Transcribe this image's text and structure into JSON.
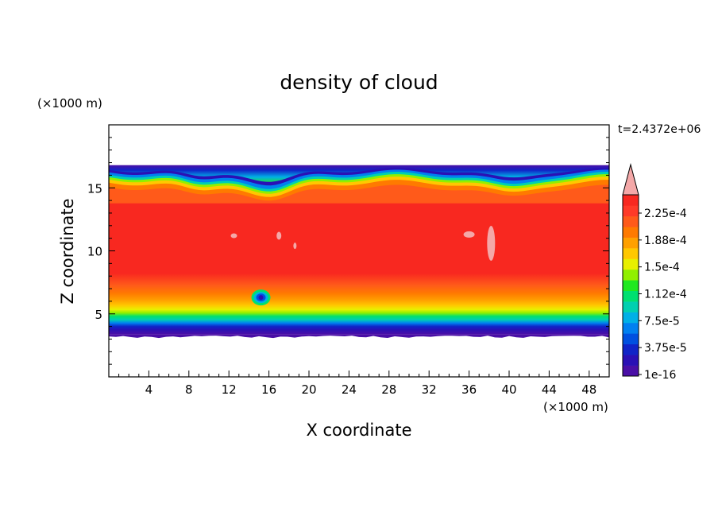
{
  "chart_data": {
    "type": "heatmap",
    "title": "density of cloud",
    "xlabel": "X coordinate",
    "ylabel": "Z coordinate",
    "x_unit": "(×1000 m)",
    "y_unit": "(×1000 m)",
    "time_label": "t=2.4372e+06",
    "xlim": [
      0,
      50
    ],
    "ylim": [
      0,
      20
    ],
    "x_ticks": [
      4,
      8,
      12,
      16,
      20,
      24,
      28,
      32,
      36,
      40,
      44,
      48
    ],
    "y_ticks": [
      5,
      10,
      15
    ],
    "colorbar": {
      "labels": [
        "2.25e-4",
        "1.88e-4",
        "1.5e-4",
        "1.12e-4",
        "7.5e-5",
        "3.75e-5",
        "1e-16"
      ],
      "levels": [
        "#4a0fa6",
        "#2a10b5",
        "#1024c8",
        "#0050e0",
        "#0080f0",
        "#00b0e6",
        "#00d0b0",
        "#00e070",
        "#20e820",
        "#90f000",
        "#e8f000",
        "#ffc800",
        "#ffa000",
        "#ff7a00",
        "#ff5a1a",
        "#ff3a28",
        "#f82820"
      ],
      "overflow_color": "#f4a8a8"
    },
    "field": {
      "cloud_base": 3.4,
      "cloud_top": 16.8,
      "core_color": "#f82820",
      "peak_color": "#f4a8a8"
    }
  }
}
